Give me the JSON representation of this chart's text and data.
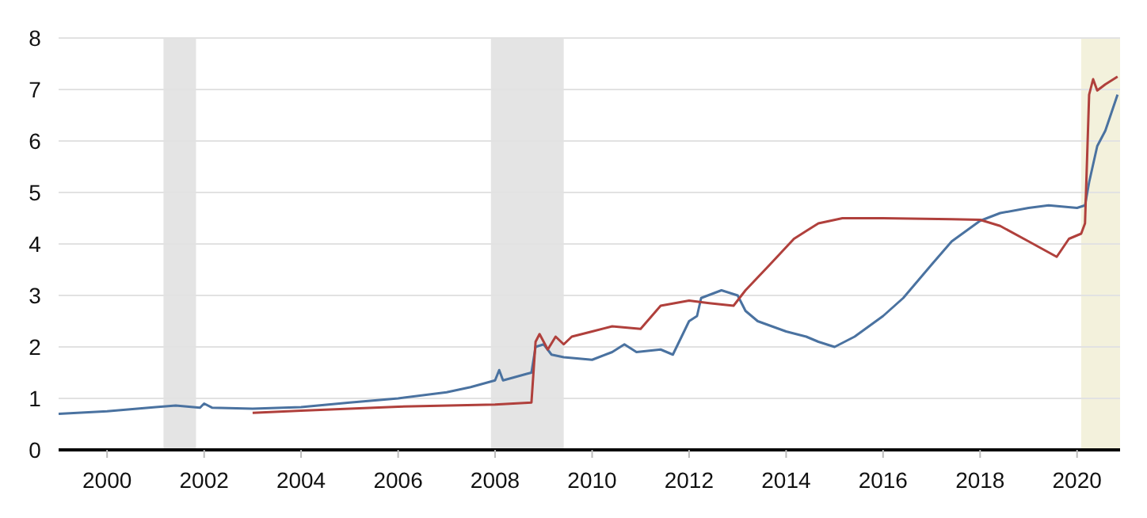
{
  "chart_data": {
    "type": "line",
    "x": [
      "1999-01",
      "2000-01",
      "2001-01",
      "2001-06",
      "2001-12",
      "2002-01",
      "2002-03",
      "2003-01",
      "2004-01",
      "2005-01",
      "2006-01",
      "2007-01",
      "2007-07",
      "2008-01",
      "2008-02",
      "2008-03",
      "2008-09",
      "2008-10",
      "2008-11",
      "2009-01",
      "2009-03",
      "2009-06",
      "2010-01",
      "2010-06",
      "2010-09",
      "2010-12",
      "2011-06",
      "2011-09",
      "2012-01",
      "2012-03",
      "2012-04",
      "2012-09",
      "2013-01",
      "2013-03",
      "2013-06",
      "2014-01",
      "2014-06",
      "2014-09",
      "2015-01",
      "2015-06",
      "2016-01",
      "2016-06",
      "2017-01",
      "2017-06",
      "2018-01",
      "2018-06",
      "2019-01",
      "2019-06",
      "2020-01",
      "2020-03",
      "2020-04",
      "2020-06",
      "2020-08",
      "2020-11"
    ],
    "series": [
      {
        "color": "#4a72a0",
        "values": [
          0.7,
          0.75,
          0.83,
          0.86,
          0.82,
          0.9,
          0.82,
          0.8,
          0.83,
          0.92,
          1.0,
          1.12,
          1.22,
          1.35,
          1.55,
          1.35,
          1.48,
          1.5,
          2.0,
          2.05,
          1.85,
          1.8,
          1.75,
          1.9,
          2.05,
          1.9,
          1.95,
          1.85,
          2.5,
          2.6,
          2.95,
          3.1,
          3.0,
          2.7,
          2.5,
          2.3,
          2.2,
          2.1,
          2.0,
          2.2,
          2.6,
          2.95,
          3.6,
          4.05,
          4.45,
          4.6,
          4.7,
          4.75,
          4.7,
          4.75,
          5.2,
          5.9,
          6.2,
          6.9
        ]
      },
      {
        "color": "#b0403c",
        "x": [
          "2003-01",
          "2004-01",
          "2006-01",
          "2008-01",
          "2008-10",
          "2008-11",
          "2008-12",
          "2009-02",
          "2009-04",
          "2009-06",
          "2009-08",
          "2010-01",
          "2010-06",
          "2011-01",
          "2011-06",
          "2012-01",
          "2012-06",
          "2012-12",
          "2013-03",
          "2013-09",
          "2014-03",
          "2014-09",
          "2015-03",
          "2016-01",
          "2017-06",
          "2018-01",
          "2018-06",
          "2019-01",
          "2019-08",
          "2019-11",
          "2020-02",
          "2020-03",
          "2020-04",
          "2020-05",
          "2020-06",
          "2020-08",
          "2020-11"
        ],
        "values": [
          0.72,
          0.76,
          0.84,
          0.88,
          0.92,
          2.1,
          2.25,
          1.95,
          2.2,
          2.05,
          2.2,
          2.3,
          2.4,
          2.35,
          2.8,
          2.9,
          2.85,
          2.8,
          3.1,
          3.6,
          4.1,
          4.4,
          4.5,
          4.5,
          4.48,
          4.47,
          4.35,
          4.05,
          3.75,
          4.1,
          4.2,
          4.4,
          6.9,
          7.2,
          6.98,
          7.1,
          7.25
        ]
      }
    ],
    "xlim": [
      "1999-01",
      "2020-11-20"
    ],
    "xticks": [
      "2000",
      "2002",
      "2004",
      "2006",
      "2008",
      "2010",
      "2012",
      "2014",
      "2016",
      "2018",
      "2020"
    ],
    "ylim": [
      0,
      8
    ],
    "yticks": [
      0,
      1,
      2,
      3,
      4,
      5,
      6,
      7,
      8
    ],
    "grid": "y",
    "bands": [
      {
        "axis": "x",
        "from": "2001-03",
        "to": "2001-11",
        "color": "#e4e4e4"
      },
      {
        "axis": "x",
        "from": "2007-12",
        "to": "2009-06",
        "color": "#e4e4e4"
      },
      {
        "axis": "x",
        "from": "2020-02",
        "to": "2020-11-20",
        "color": "#f3f1dc"
      }
    ]
  }
}
